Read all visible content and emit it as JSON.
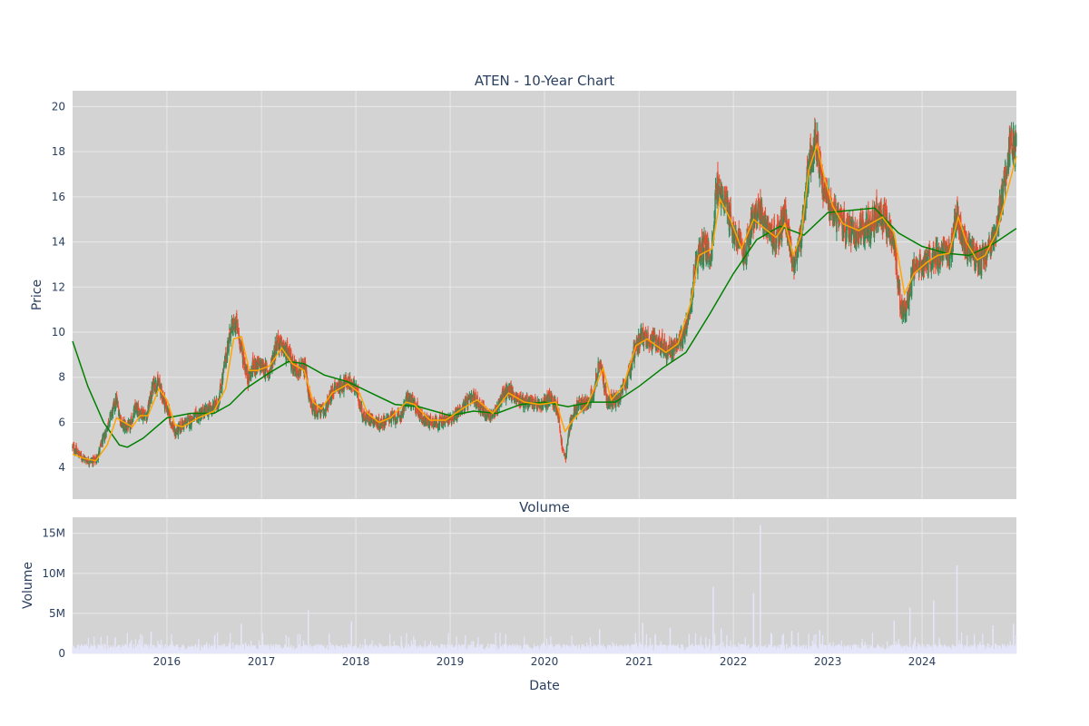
{
  "chart_data": [
    {
      "type": "candlestick",
      "title": "ATEN - 10-Year Chart",
      "ylabel": "Price",
      "ylim": [
        2.6,
        20.7
      ],
      "yticks": [
        4,
        6,
        8,
        10,
        12,
        14,
        16,
        18,
        20
      ],
      "x_range": [
        "2015-01-01",
        "2024-12-31"
      ],
      "grid": true,
      "legend": "none",
      "colors": {
        "up": "#2e8b57",
        "down": "#f04a2e",
        "ma_short": "#ffa500",
        "ma_long": "#008000",
        "plot_bg": "#d3d3d3",
        "grid": "#e8e8ea"
      },
      "close_path": [
        [
          "2015-01-01",
          4.9
        ],
        [
          "2015-02-01",
          4.5
        ],
        [
          "2015-03-01",
          4.3
        ],
        [
          "2015-04-01",
          4.3
        ],
        [
          "2015-05-01",
          5.3
        ],
        [
          "2015-06-01",
          6.4
        ],
        [
          "2015-06-20",
          7.0
        ],
        [
          "2015-07-10",
          5.9
        ],
        [
          "2015-08-10",
          5.8
        ],
        [
          "2015-09-01",
          6.6
        ],
        [
          "2015-10-15",
          6.3
        ],
        [
          "2015-11-10",
          7.7
        ],
        [
          "2015-12-01",
          7.7
        ],
        [
          "2016-01-01",
          6.6
        ],
        [
          "2016-02-01",
          5.5
        ],
        [
          "2016-03-01",
          5.9
        ],
        [
          "2016-04-15",
          6.2
        ],
        [
          "2016-06-01",
          6.5
        ],
        [
          "2016-07-15",
          6.8
        ],
        [
          "2016-08-01",
          7.8
        ],
        [
          "2016-09-01",
          10.0
        ],
        [
          "2016-09-25",
          10.4
        ],
        [
          "2016-10-20",
          9.0
        ],
        [
          "2016-11-10",
          7.9
        ],
        [
          "2016-12-01",
          8.5
        ],
        [
          "2017-01-01",
          8.5
        ],
        [
          "2017-02-01",
          8.2
        ],
        [
          "2017-03-01",
          9.6
        ],
        [
          "2017-04-15",
          9.0
        ],
        [
          "2017-05-10",
          8.4
        ],
        [
          "2017-06-20",
          8.3
        ],
        [
          "2017-07-10",
          6.7
        ],
        [
          "2017-08-10",
          6.5
        ],
        [
          "2017-09-01",
          6.5
        ],
        [
          "2017-10-10",
          7.5
        ],
        [
          "2017-12-01",
          7.8
        ],
        [
          "2018-01-01",
          7.5
        ],
        [
          "2018-02-01",
          6.2
        ],
        [
          "2018-03-01",
          6.2
        ],
        [
          "2018-04-01",
          5.9
        ],
        [
          "2018-05-10",
          6.2
        ],
        [
          "2018-06-20",
          6.2
        ],
        [
          "2018-07-20",
          7.1
        ],
        [
          "2018-08-15",
          6.8
        ],
        [
          "2018-09-20",
          6.1
        ],
        [
          "2018-11-10",
          6.0
        ],
        [
          "2018-12-20",
          6.1
        ],
        [
          "2019-01-20",
          6.3
        ],
        [
          "2019-02-20",
          6.7
        ],
        [
          "2019-04-01",
          7.1
        ],
        [
          "2019-05-20",
          6.4
        ],
        [
          "2019-06-20",
          6.3
        ],
        [
          "2019-07-20",
          7.2
        ],
        [
          "2019-08-20",
          7.4
        ],
        [
          "2019-09-20",
          7.0
        ],
        [
          "2019-11-01",
          6.9
        ],
        [
          "2019-12-20",
          6.7
        ],
        [
          "2020-01-20",
          7.1
        ],
        [
          "2020-02-20",
          6.7
        ],
        [
          "2020-03-10",
          4.8
        ],
        [
          "2020-03-22",
          4.4
        ],
        [
          "2020-04-10",
          6.0
        ],
        [
          "2020-05-10",
          6.8
        ],
        [
          "2020-06-10",
          6.8
        ],
        [
          "2020-07-10",
          7.4
        ],
        [
          "2020-08-01",
          8.7
        ],
        [
          "2020-09-01",
          6.9
        ],
        [
          "2020-10-10",
          7.0
        ],
        [
          "2020-11-15",
          7.8
        ],
        [
          "2020-12-20",
          9.5
        ],
        [
          "2021-01-15",
          9.8
        ],
        [
          "2021-02-20",
          9.6
        ],
        [
          "2021-03-20",
          9.6
        ],
        [
          "2021-04-20",
          9.1
        ],
        [
          "2021-05-20",
          9.3
        ],
        [
          "2021-06-20",
          9.8
        ],
        [
          "2021-07-15",
          11.0
        ],
        [
          "2021-08-10",
          13.2
        ],
        [
          "2021-09-10",
          13.8
        ],
        [
          "2021-10-10",
          13.5
        ],
        [
          "2021-10-25",
          16.6
        ],
        [
          "2021-11-20",
          16.0
        ],
        [
          "2021-12-15",
          15.2
        ],
        [
          "2022-01-15",
          14.0
        ],
        [
          "2022-02-15",
          13.4
        ],
        [
          "2022-03-15",
          15.1
        ],
        [
          "2022-04-15",
          15.2
        ],
        [
          "2022-05-15",
          14.6
        ],
        [
          "2022-06-15",
          14.0
        ],
        [
          "2022-07-20",
          15.2
        ],
        [
          "2022-08-20",
          13.0
        ],
        [
          "2022-09-20",
          14.0
        ],
        [
          "2022-10-20",
          17.5
        ],
        [
          "2022-11-15",
          18.7
        ],
        [
          "2022-12-15",
          16.5
        ],
        [
          "2023-01-15",
          15.5
        ],
        [
          "2023-02-15",
          15.0
        ],
        [
          "2023-03-15",
          14.5
        ],
        [
          "2023-04-15",
          14.3
        ],
        [
          "2023-05-15",
          14.6
        ],
        [
          "2023-06-15",
          14.8
        ],
        [
          "2023-07-15",
          15.3
        ],
        [
          "2023-08-15",
          14.8
        ],
        [
          "2023-09-15",
          14.0
        ],
        [
          "2023-10-10",
          11.2
        ],
        [
          "2023-11-01",
          11.0
        ],
        [
          "2023-12-01",
          12.8
        ],
        [
          "2024-01-15",
          13.1
        ],
        [
          "2024-02-15",
          13.4
        ],
        [
          "2024-03-15",
          13.5
        ],
        [
          "2024-04-15",
          13.4
        ],
        [
          "2024-05-15",
          15.2
        ],
        [
          "2024-06-15",
          13.8
        ],
        [
          "2024-07-15",
          13.5
        ],
        [
          "2024-08-15",
          13.2
        ],
        [
          "2024-09-15",
          13.8
        ],
        [
          "2024-10-15",
          14.5
        ],
        [
          "2024-11-15",
          16.8
        ],
        [
          "2024-12-10",
          18.6
        ],
        [
          "2024-12-31",
          18.3
        ]
      ],
      "ma_short": [
        [
          "2015-01-01",
          4.6
        ],
        [
          "2015-02-15",
          4.4
        ],
        [
          "2015-04-01",
          4.3
        ],
        [
          "2015-05-15",
          5.0
        ],
        [
          "2015-06-20",
          6.2
        ],
        [
          "2015-07-20",
          6.0
        ],
        [
          "2015-08-20",
          5.8
        ],
        [
          "2015-09-20",
          6.3
        ],
        [
          "2015-10-20",
          6.3
        ],
        [
          "2015-12-01",
          7.5
        ],
        [
          "2016-01-01",
          7.0
        ],
        [
          "2016-02-01",
          5.9
        ],
        [
          "2016-03-01",
          5.8
        ],
        [
          "2016-05-01",
          6.2
        ],
        [
          "2016-07-01",
          6.5
        ],
        [
          "2016-08-15",
          7.5
        ],
        [
          "2016-09-15",
          9.7
        ],
        [
          "2016-10-15",
          9.8
        ],
        [
          "2016-11-15",
          8.3
        ],
        [
          "2016-12-15",
          8.3
        ],
        [
          "2017-02-01",
          8.5
        ],
        [
          "2017-03-20",
          9.3
        ],
        [
          "2017-05-01",
          8.6
        ],
        [
          "2017-06-15",
          8.3
        ],
        [
          "2017-07-20",
          6.9
        ],
        [
          "2017-08-20",
          6.6
        ],
        [
          "2017-10-01",
          7.3
        ],
        [
          "2017-12-01",
          7.7
        ],
        [
          "2018-01-15",
          7.3
        ],
        [
          "2018-02-15",
          6.4
        ],
        [
          "2018-04-01",
          6.0
        ],
        [
          "2018-05-15",
          6.2
        ],
        [
          "2018-07-15",
          6.9
        ],
        [
          "2018-08-15",
          6.8
        ],
        [
          "2018-10-15",
          6.1
        ],
        [
          "2018-12-15",
          6.1
        ],
        [
          "2019-02-15",
          6.6
        ],
        [
          "2019-04-15",
          7.0
        ],
        [
          "2019-06-15",
          6.4
        ],
        [
          "2019-08-15",
          7.3
        ],
        [
          "2019-10-15",
          6.9
        ],
        [
          "2019-12-15",
          6.8
        ],
        [
          "2020-02-15",
          6.9
        ],
        [
          "2020-03-20",
          5.6
        ],
        [
          "2020-04-20",
          6.1
        ],
        [
          "2020-06-15",
          6.8
        ],
        [
          "2020-08-15",
          8.4
        ],
        [
          "2020-09-15",
          7.0
        ],
        [
          "2020-11-01",
          7.6
        ],
        [
          "2020-12-20",
          9.4
        ],
        [
          "2021-02-01",
          9.7
        ],
        [
          "2021-04-15",
          9.1
        ],
        [
          "2021-06-01",
          9.5
        ],
        [
          "2021-07-20",
          11.3
        ],
        [
          "2021-08-20",
          13.4
        ],
        [
          "2021-10-10",
          13.7
        ],
        [
          "2021-11-10",
          15.9
        ],
        [
          "2021-12-20",
          15.0
        ],
        [
          "2022-02-01",
          13.7
        ],
        [
          "2022-03-20",
          15.0
        ],
        [
          "2022-05-01",
          14.6
        ],
        [
          "2022-06-15",
          14.2
        ],
        [
          "2022-07-20",
          14.8
        ],
        [
          "2022-08-20",
          13.4
        ],
        [
          "2022-09-20",
          14.3
        ],
        [
          "2022-10-20",
          17.2
        ],
        [
          "2022-11-20",
          18.3
        ],
        [
          "2022-12-20",
          16.8
        ],
        [
          "2023-01-20",
          15.6
        ],
        [
          "2023-03-01",
          14.8
        ],
        [
          "2023-05-01",
          14.5
        ],
        [
          "2023-06-15",
          14.8
        ],
        [
          "2023-08-01",
          15.1
        ],
        [
          "2023-09-15",
          14.4
        ],
        [
          "2023-10-25",
          11.7
        ],
        [
          "2023-12-01",
          12.6
        ],
        [
          "2024-01-20",
          13.1
        ],
        [
          "2024-03-01",
          13.4
        ],
        [
          "2024-04-15",
          13.5
        ],
        [
          "2024-05-20",
          15.1
        ],
        [
          "2024-06-20",
          14.0
        ],
        [
          "2024-08-01",
          13.2
        ],
        [
          "2024-09-01",
          13.4
        ],
        [
          "2024-10-15",
          14.4
        ],
        [
          "2024-11-20",
          16.0
        ],
        [
          "2024-12-31",
          17.8
        ]
      ],
      "ma_long": [
        [
          "2015-01-01",
          9.6
        ],
        [
          "2015-03-01",
          7.6
        ],
        [
          "2015-05-01",
          6.0
        ],
        [
          "2015-07-01",
          5.0
        ],
        [
          "2015-08-01",
          4.9
        ],
        [
          "2015-10-01",
          5.3
        ],
        [
          "2016-01-01",
          6.2
        ],
        [
          "2016-04-01",
          6.4
        ],
        [
          "2016-07-01",
          6.4
        ],
        [
          "2016-09-01",
          6.8
        ],
        [
          "2016-11-01",
          7.5
        ],
        [
          "2017-02-01",
          8.2
        ],
        [
          "2017-04-15",
          8.7
        ],
        [
          "2017-06-15",
          8.6
        ],
        [
          "2017-09-01",
          8.1
        ],
        [
          "2017-12-01",
          7.8
        ],
        [
          "2018-03-01",
          7.3
        ],
        [
          "2018-06-01",
          6.8
        ],
        [
          "2018-09-01",
          6.7
        ],
        [
          "2019-01-01",
          6.3
        ],
        [
          "2019-04-01",
          6.5
        ],
        [
          "2019-07-01",
          6.4
        ],
        [
          "2019-10-01",
          6.8
        ],
        [
          "2020-01-01",
          6.9
        ],
        [
          "2020-04-01",
          6.7
        ],
        [
          "2020-07-01",
          6.9
        ],
        [
          "2020-10-01",
          6.9
        ],
        [
          "2021-01-01",
          7.6
        ],
        [
          "2021-04-01",
          8.4
        ],
        [
          "2021-07-01",
          9.1
        ],
        [
          "2021-10-01",
          10.8
        ],
        [
          "2022-01-01",
          12.6
        ],
        [
          "2022-04-01",
          14.1
        ],
        [
          "2022-07-01",
          14.7
        ],
        [
          "2022-10-01",
          14.3
        ],
        [
          "2023-01-01",
          15.3
        ],
        [
          "2023-04-01",
          15.4
        ],
        [
          "2023-07-01",
          15.5
        ],
        [
          "2023-10-01",
          14.4
        ],
        [
          "2024-01-01",
          13.8
        ],
        [
          "2024-04-01",
          13.5
        ],
        [
          "2024-07-01",
          13.4
        ],
        [
          "2024-10-01",
          13.9
        ],
        [
          "2024-12-31",
          14.6
        ]
      ]
    },
    {
      "type": "bar",
      "title": "Volume",
      "xlabel": "Date",
      "ylabel": "Volume",
      "ylim": [
        0,
        17000000
      ],
      "yticks": [
        0,
        5000000,
        10000000,
        15000000
      ],
      "ytick_labels": [
        "0",
        "5M",
        "10M",
        "15M"
      ],
      "xticks": [
        "2016",
        "2017",
        "2018",
        "2019",
        "2020",
        "2021",
        "2022",
        "2023",
        "2024"
      ],
      "x_range": [
        "2015-01-01",
        "2024-12-31"
      ],
      "bar_color": "#e6e6fa",
      "plot_bg": "#d3d3d3",
      "baseline_volume": 700000,
      "spikes": [
        [
          "2015-06-15",
          2000000
        ],
        [
          "2015-11-01",
          2700000
        ],
        [
          "2016-10-15",
          3700000
        ],
        [
          "2017-07-01",
          5400000
        ],
        [
          "2017-12-15",
          4000000
        ],
        [
          "2019-04-01",
          1500000
        ],
        [
          "2020-08-01",
          3000000
        ],
        [
          "2021-01-15",
          3800000
        ],
        [
          "2021-05-01",
          3200000
        ],
        [
          "2021-10-15",
          8300000
        ],
        [
          "2021-11-15",
          3100000
        ],
        [
          "2022-03-20",
          7500000
        ],
        [
          "2022-04-15",
          16000000
        ],
        [
          "2022-08-15",
          2800000
        ],
        [
          "2022-12-01",
          2900000
        ],
        [
          "2023-09-15",
          4100000
        ],
        [
          "2023-11-15",
          5700000
        ],
        [
          "2024-02-15",
          6600000
        ],
        [
          "2024-05-15",
          11000000
        ],
        [
          "2024-10-01",
          3500000
        ],
        [
          "2024-12-20",
          3700000
        ]
      ]
    }
  ]
}
